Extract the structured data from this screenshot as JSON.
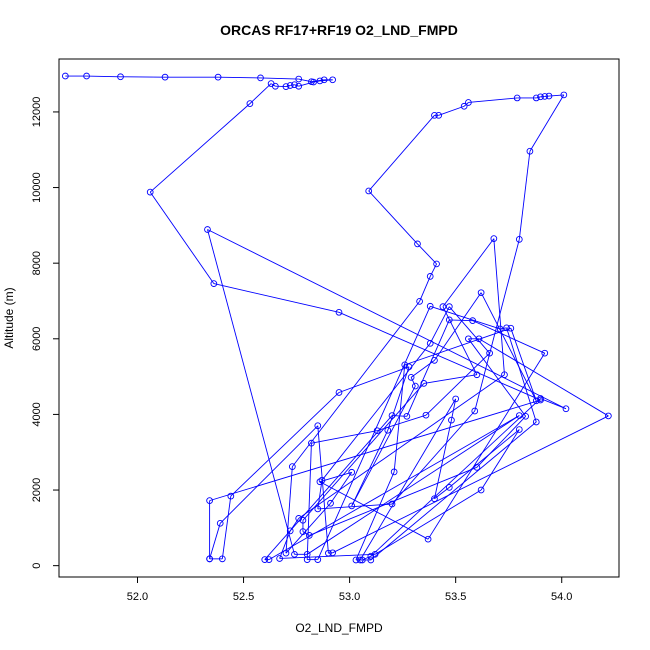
{
  "chart_data": {
    "type": "line",
    "title": "ORCAS RF17+RF19 O2_LND_FMPD",
    "xlabel": "O2_LND_FMPD",
    "ylabel": "Altitude (m)",
    "xlim": [
      51.63,
      54.27
    ],
    "ylim": [
      -300,
      13400
    ],
    "xticks": [
      52.0,
      52.5,
      53.0,
      53.5,
      54.0
    ],
    "xtick_labels": [
      "52.0",
      "52.5",
      "53.0",
      "53.5",
      "54.0"
    ],
    "yticks": [
      0,
      2000,
      4000,
      6000,
      8000,
      10000,
      12000
    ],
    "ytick_labels": [
      "0",
      "2000",
      "4000",
      "6000",
      "8000",
      "10000",
      "12000"
    ],
    "grid": false,
    "series": [
      {
        "color": "#0000ff",
        "points": [
          [
            51.66,
            12950
          ],
          [
            51.76,
            12950
          ],
          [
            51.92,
            12930
          ],
          [
            52.13,
            12920
          ],
          [
            52.38,
            12920
          ],
          [
            52.58,
            12900
          ],
          [
            52.76,
            12870
          ],
          [
            52.82,
            12800
          ],
          [
            52.88,
            12850
          ],
          [
            52.92,
            12850
          ],
          [
            52.86,
            12820
          ],
          [
            52.83,
            12790
          ],
          [
            52.76,
            12680
          ],
          [
            52.74,
            12720
          ],
          [
            52.72,
            12700
          ],
          [
            52.7,
            12670
          ],
          [
            52.65,
            12680
          ],
          [
            52.63,
            12750
          ],
          [
            52.53,
            12220
          ],
          [
            52.06,
            9880
          ],
          [
            52.36,
            7460
          ],
          [
            52.95,
            6700
          ],
          [
            53.9,
            4380
          ],
          [
            52.34,
            1720
          ],
          [
            52.34,
            180
          ],
          [
            52.4,
            180
          ],
          [
            52.44,
            1840
          ],
          [
            52.95,
            4580
          ],
          [
            53.28,
            5260
          ],
          [
            53.18,
            3580
          ],
          [
            53.01,
            1580
          ],
          [
            53.31,
            4750
          ],
          [
            53.29,
            4980
          ],
          [
            53.4,
            5430
          ],
          [
            53.62,
            7220
          ],
          [
            53.88,
            4360
          ],
          [
            53.76,
            6280
          ],
          [
            53.26,
            5310
          ],
          [
            53.21,
            2480
          ],
          [
            53.03,
            150
          ],
          [
            53.06,
            150
          ],
          [
            53.1,
            250
          ],
          [
            53.9,
            4420
          ],
          [
            54.02,
            4150
          ],
          [
            52.33,
            8890
          ],
          [
            52.74,
            300
          ],
          [
            52.8,
            300
          ],
          [
            53.8,
            3970
          ],
          [
            52.62,
            160
          ],
          [
            52.6,
            160
          ],
          [
            53.2,
            3970
          ],
          [
            53.27,
            3950
          ],
          [
            53.47,
            6500
          ],
          [
            53.58,
            6480
          ],
          [
            53.92,
            5620
          ],
          [
            53.37,
            700
          ],
          [
            52.86,
            2220
          ],
          [
            53.01,
            2470
          ],
          [
            52.91,
            1650
          ],
          [
            52.7,
            330
          ],
          [
            52.73,
            2620
          ],
          [
            53.33,
            6990
          ],
          [
            53.38,
            7650
          ],
          [
            53.41,
            7980
          ],
          [
            53.32,
            8510
          ],
          [
            53.09,
            9910
          ],
          [
            53.4,
            11910
          ],
          [
            53.42,
            11910
          ],
          [
            53.54,
            12150
          ],
          [
            53.56,
            12250
          ],
          [
            53.79,
            12370
          ],
          [
            53.88,
            12370
          ],
          [
            53.9,
            12400
          ],
          [
            53.92,
            12410
          ],
          [
            53.94,
            12420
          ],
          [
            54.01,
            12450
          ],
          [
            53.85,
            10960
          ],
          [
            53.8,
            8630
          ],
          [
            53.59,
            4090
          ],
          [
            53.2,
            1630
          ],
          [
            52.85,
            1500
          ],
          [
            52.87,
            2260
          ],
          [
            53.38,
            5880
          ],
          [
            53.47,
            6850
          ],
          [
            53.66,
            5620
          ],
          [
            53.36,
            3980
          ],
          [
            53.13,
            3570
          ],
          [
            52.82,
            3240
          ],
          [
            52.8,
            160
          ],
          [
            52.85,
            160
          ],
          [
            53.38,
            6860
          ],
          [
            53.71,
            6260
          ],
          [
            53.74,
            6290
          ],
          [
            53.88,
            3800
          ],
          [
            53.1,
            150
          ],
          [
            53.05,
            150
          ],
          [
            53.5,
            4410
          ],
          [
            53.48,
            3850
          ],
          [
            53.4,
            1770
          ],
          [
            53.47,
            2070
          ],
          [
            53.8,
            3600
          ],
          [
            53.62,
            2000
          ],
          [
            53.12,
            300
          ],
          [
            52.67,
            190
          ],
          [
            52.72,
            920
          ],
          [
            52.76,
            1250
          ],
          [
            53.73,
            5050
          ],
          [
            53.68,
            8650
          ],
          [
            53.44,
            6850
          ],
          [
            53.6,
            5050
          ],
          [
            53.35,
            4820
          ],
          [
            52.78,
            1200
          ],
          [
            52.78,
            900
          ],
          [
            52.81,
            800
          ],
          [
            53.6,
            2600
          ],
          [
            53.83,
            3950
          ],
          [
            53.56,
            6000
          ],
          [
            53.61,
            6000
          ],
          [
            54.22,
            3960
          ],
          [
            52.92,
            340
          ],
          [
            52.9,
            330
          ],
          [
            52.85,
            3700
          ],
          [
            52.39,
            1120
          ],
          [
            52.34,
            180
          ]
        ]
      }
    ]
  }
}
